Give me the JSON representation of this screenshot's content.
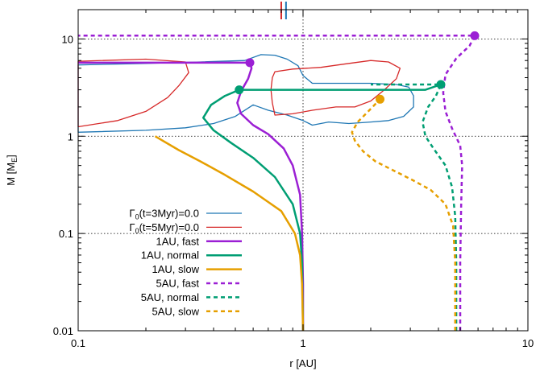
{
  "chart_data": {
    "type": "line",
    "title": "",
    "xlabel": "r [AU]",
    "ylabel": "M [M",
    "ylabel_sub": "E",
    "ylabel_close": "]",
    "x_scale": "log",
    "y_scale": "log",
    "xlim": [
      0.1,
      10
    ],
    "ylim": [
      0.01,
      20
    ],
    "grid": "dotted at major decades",
    "legend_position": "bottom-left",
    "x_ticks": [
      {
        "value": 0.1,
        "label": "0.1"
      },
      {
        "value": 1,
        "label": "1"
      },
      {
        "value": 10,
        "label": "10"
      }
    ],
    "y_ticks": [
      {
        "value": 0.01,
        "label": "0.01"
      },
      {
        "value": 0.1,
        "label": "0.1"
      },
      {
        "value": 1,
        "label": "1"
      },
      {
        "value": 10,
        "label": "10"
      }
    ],
    "top_markers": [
      {
        "x": 0.8,
        "color": "#d62828"
      },
      {
        "x": 0.84,
        "color": "#1f77b4"
      }
    ],
    "series": [
      {
        "name": "Γ0(t=3Myr)=0.0",
        "color": "#1f77b4",
        "width": 1.3,
        "dash": "solid",
        "closed": true,
        "points": [
          [
            0.1,
            5.4
          ],
          [
            0.2,
            5.6
          ],
          [
            0.35,
            5.8
          ],
          [
            0.55,
            6.0
          ],
          [
            0.65,
            6.9
          ],
          [
            0.75,
            6.8
          ],
          [
            0.85,
            6.2
          ],
          [
            0.95,
            5.3
          ],
          [
            1.0,
            4.2
          ],
          [
            1.1,
            3.5
          ],
          [
            1.4,
            3.5
          ],
          [
            2.0,
            3.5
          ],
          [
            2.6,
            3.4
          ],
          [
            2.95,
            3.2
          ],
          [
            3.1,
            2.6
          ],
          [
            3.1,
            2.0
          ],
          [
            2.8,
            1.6
          ],
          [
            2.4,
            1.45
          ],
          [
            2.0,
            1.4
          ],
          [
            1.6,
            1.35
          ],
          [
            1.3,
            1.4
          ],
          [
            1.1,
            1.3
          ],
          [
            1.0,
            1.45
          ],
          [
            0.85,
            1.65
          ],
          [
            0.7,
            1.85
          ],
          [
            0.6,
            2.1
          ],
          [
            0.5,
            1.6
          ],
          [
            0.4,
            1.35
          ],
          [
            0.3,
            1.22
          ],
          [
            0.2,
            1.15
          ],
          [
            0.1,
            1.1
          ]
        ]
      },
      {
        "name": "Γ0(t=5Myr)=0.0",
        "color": "#d62828",
        "width": 1.3,
        "dash": "solid",
        "closed": true,
        "points": [
          [
            0.1,
            5.9
          ],
          [
            0.2,
            6.2
          ],
          [
            0.3,
            5.8
          ],
          [
            0.31,
            4.5
          ],
          [
            0.28,
            3.3
          ],
          [
            0.25,
            2.5
          ],
          [
            0.2,
            1.8
          ],
          [
            0.15,
            1.45
          ],
          [
            0.1,
            1.25
          ]
        ]
      },
      {
        "name": "Γ0(t=5Myr)=0.0 (outer loop)",
        "color": "#d62828",
        "width": 1.3,
        "dash": "solid",
        "closed": true,
        "points": [
          [
            0.75,
            4.6
          ],
          [
            0.9,
            4.9
          ],
          [
            1.2,
            5.1
          ],
          [
            1.6,
            5.6
          ],
          [
            2.0,
            6.0
          ],
          [
            2.4,
            5.8
          ],
          [
            2.7,
            5.0
          ],
          [
            2.6,
            3.9
          ],
          [
            2.3,
            3.0
          ],
          [
            2.0,
            2.3
          ],
          [
            1.7,
            2.0
          ],
          [
            1.4,
            2.0
          ],
          [
            1.1,
            1.85
          ],
          [
            0.9,
            1.7
          ],
          [
            0.75,
            1.65
          ],
          [
            0.73,
            2.2
          ],
          [
            0.72,
            3.0
          ],
          [
            0.73,
            4.0
          ],
          [
            0.75,
            4.6
          ]
        ]
      },
      {
        "name": "1AU, fast",
        "color": "#9b1fd4",
        "width": 2.5,
        "dash": "solid",
        "points": [
          [
            1.0,
            0.01
          ],
          [
            1.0,
            0.03
          ],
          [
            0.99,
            0.1
          ],
          [
            0.97,
            0.25
          ],
          [
            0.9,
            0.5
          ],
          [
            0.82,
            0.75
          ],
          [
            0.7,
            1.05
          ],
          [
            0.6,
            1.3
          ],
          [
            0.53,
            1.7
          ],
          [
            0.51,
            2.2
          ],
          [
            0.53,
            2.9
          ],
          [
            0.57,
            3.9
          ],
          [
            0.59,
            5.0
          ],
          [
            0.58,
            5.7
          ],
          [
            0.45,
            5.7
          ],
          [
            0.3,
            5.7
          ],
          [
            0.2,
            5.7
          ],
          [
            0.1,
            5.7
          ]
        ],
        "endpoint": [
          0.58,
          5.7
        ]
      },
      {
        "name": "1AU, normal",
        "color": "#009e73",
        "width": 2.5,
        "dash": "solid",
        "points": [
          [
            1.0,
            0.01
          ],
          [
            0.99,
            0.05
          ],
          [
            0.97,
            0.1
          ],
          [
            0.9,
            0.2
          ],
          [
            0.75,
            0.38
          ],
          [
            0.6,
            0.6
          ],
          [
            0.48,
            0.85
          ],
          [
            0.4,
            1.15
          ],
          [
            0.36,
            1.55
          ],
          [
            0.39,
            2.1
          ],
          [
            0.45,
            2.6
          ],
          [
            0.52,
            3.0
          ],
          [
            0.8,
            3.0
          ],
          [
            1.5,
            3.0
          ],
          [
            2.5,
            3.0
          ],
          [
            3.5,
            3.0
          ],
          [
            4.1,
            3.4
          ]
        ],
        "endpoint": [
          0.52,
          3.0
        ]
      },
      {
        "name": "1AU, slow",
        "color": "#e69f00",
        "width": 2.5,
        "dash": "solid",
        "points": [
          [
            1.0,
            0.01
          ],
          [
            0.99,
            0.03
          ],
          [
            0.97,
            0.06
          ],
          [
            0.92,
            0.1
          ],
          [
            0.8,
            0.17
          ],
          [
            0.6,
            0.27
          ],
          [
            0.45,
            0.4
          ],
          [
            0.35,
            0.55
          ],
          [
            0.28,
            0.72
          ],
          [
            0.22,
            1.0
          ]
        ]
      },
      {
        "name": "5AU, fast",
        "color": "#9b1fd4",
        "width": 2.5,
        "dash": "dashed",
        "points": [
          [
            5.0,
            0.01
          ],
          [
            5.0,
            0.05
          ],
          [
            5.05,
            0.2
          ],
          [
            5.1,
            0.5
          ],
          [
            5.0,
            0.8
          ],
          [
            4.6,
            1.2
          ],
          [
            4.3,
            1.8
          ],
          [
            4.2,
            2.8
          ],
          [
            4.3,
            4.3
          ],
          [
            4.8,
            6.3
          ],
          [
            5.5,
            8.5
          ],
          [
            5.8,
            10.8
          ],
          [
            1.0,
            10.8
          ],
          [
            0.1,
            10.8
          ]
        ],
        "endpoint": [
          5.8,
          10.8
        ]
      },
      {
        "name": "5AU, normal",
        "color": "#009e73",
        "width": 2.5,
        "dash": "dashed",
        "points": [
          [
            4.8,
            0.01
          ],
          [
            4.8,
            0.05
          ],
          [
            4.75,
            0.15
          ],
          [
            4.6,
            0.3
          ],
          [
            4.3,
            0.5
          ],
          [
            3.8,
            0.75
          ],
          [
            3.5,
            1.0
          ],
          [
            3.4,
            1.4
          ],
          [
            3.6,
            2.0
          ],
          [
            3.9,
            2.6
          ],
          [
            4.1,
            3.4
          ],
          [
            3.5,
            3.4
          ],
          [
            2.5,
            3.4
          ],
          [
            2.0,
            3.4
          ]
        ],
        "endpoint": [
          4.1,
          3.4
        ]
      },
      {
        "name": "5AU, slow",
        "color": "#e69f00",
        "width": 2.5,
        "dash": "dashed",
        "points": [
          [
            4.75,
            0.01
          ],
          [
            4.75,
            0.05
          ],
          [
            4.65,
            0.12
          ],
          [
            4.3,
            0.2
          ],
          [
            3.7,
            0.28
          ],
          [
            3.1,
            0.35
          ],
          [
            2.5,
            0.45
          ],
          [
            2.1,
            0.55
          ],
          [
            1.85,
            0.7
          ],
          [
            1.7,
            0.9
          ],
          [
            1.65,
            1.1
          ],
          [
            1.75,
            1.4
          ],
          [
            1.95,
            1.8
          ],
          [
            2.2,
            2.4
          ]
        ],
        "endpoint": [
          2.2,
          2.4
        ]
      }
    ],
    "legend": [
      {
        "label_main": "Γ",
        "label_sub": "0",
        "label_rest": "(t=3Myr)=0.0",
        "color": "#1f77b4",
        "width": 1.3,
        "dash": "solid"
      },
      {
        "label_main": "Γ",
        "label_sub": "0",
        "label_rest": "(t=5Myr)=0.0",
        "color": "#d62828",
        "width": 1.3,
        "dash": "solid"
      },
      {
        "label_main": "1AU, fast",
        "label_sub": "",
        "label_rest": "",
        "color": "#9b1fd4",
        "width": 2.5,
        "dash": "solid"
      },
      {
        "label_main": "1AU, normal",
        "label_sub": "",
        "label_rest": "",
        "color": "#009e73",
        "width": 2.5,
        "dash": "solid"
      },
      {
        "label_main": "1AU, slow",
        "label_sub": "",
        "label_rest": "",
        "color": "#e69f00",
        "width": 2.5,
        "dash": "solid"
      },
      {
        "label_main": "5AU, fast",
        "label_sub": "",
        "label_rest": "",
        "color": "#9b1fd4",
        "width": 2.5,
        "dash": "dashed"
      },
      {
        "label_main": "5AU, normal",
        "label_sub": "",
        "label_rest": "",
        "color": "#009e73",
        "width": 2.5,
        "dash": "dashed"
      },
      {
        "label_main": "5AU, slow",
        "label_sub": "",
        "label_rest": "",
        "color": "#e69f00",
        "width": 2.5,
        "dash": "dashed"
      }
    ]
  }
}
